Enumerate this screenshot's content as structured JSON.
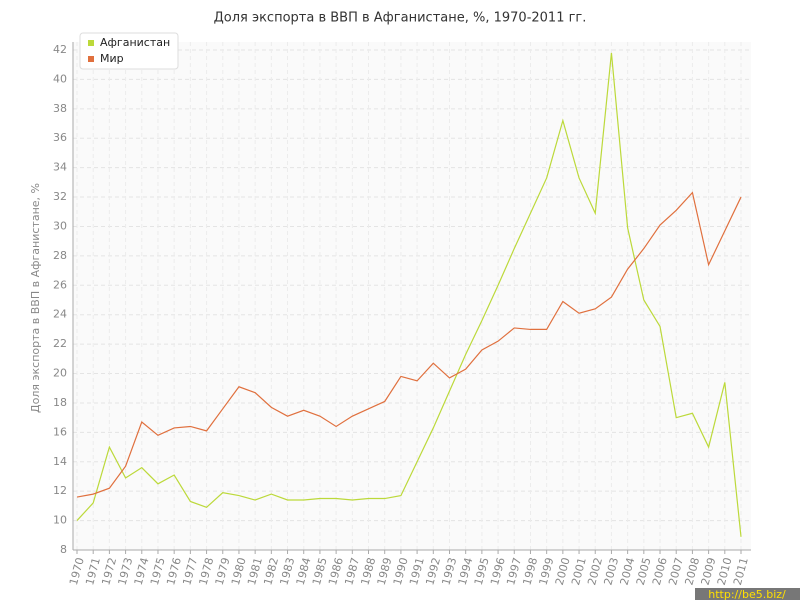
{
  "chart_data": {
    "type": "line",
    "title": "Доля экспорта в ВВП в Афганистане, %, 1970-2011 гг.",
    "y_label": "Доля экспорта в ВВП в Афганистане, %",
    "categories": [
      "1970",
      "1971",
      "1972",
      "1973",
      "1974",
      "1975",
      "1976",
      "1977",
      "1978",
      "1979",
      "1980",
      "1981",
      "1982",
      "1983",
      "1984",
      "1985",
      "1986",
      "1987",
      "1988",
      "1989",
      "1990",
      "1991",
      "1992",
      "1993",
      "1994",
      "1995",
      "1996",
      "1997",
      "1998",
      "1999",
      "2000",
      "2001",
      "2002",
      "2003",
      "2004",
      "2005",
      "2006",
      "2007",
      "2008",
      "2009",
      "2010",
      "2011"
    ],
    "series": [
      {
        "name": "Афганистан",
        "color": "#bcd93a",
        "values": [
          10.0,
          11.2,
          15.0,
          12.9,
          13.6,
          12.5,
          13.1,
          11.3,
          10.9,
          11.9,
          11.7,
          11.4,
          11.8,
          11.4,
          11.4,
          11.5,
          11.5,
          11.4,
          11.5,
          11.5,
          11.7,
          14.0,
          16.3,
          18.8,
          21.3,
          23.6,
          26.0,
          28.5,
          30.9,
          33.3,
          37.2,
          33.3,
          30.9,
          41.8,
          29.9,
          25.0,
          23.2,
          17.0,
          17.3,
          15.0,
          19.4,
          8.9
        ]
      },
      {
        "name": "Мир",
        "color": "#e0703e",
        "values": [
          11.6,
          11.8,
          12.2,
          13.7,
          16.7,
          15.8,
          16.3,
          16.4,
          16.1,
          17.6,
          19.1,
          18.7,
          17.7,
          17.1,
          17.5,
          17.1,
          16.4,
          17.1,
          17.6,
          18.1,
          19.8,
          19.5,
          20.7,
          19.7,
          20.3,
          21.6,
          22.2,
          23.1,
          23.0,
          23.0,
          24.9,
          24.1,
          24.4,
          25.2,
          27.1,
          28.5,
          30.1,
          31.1,
          32.3,
          27.4,
          29.7,
          32.0
        ]
      }
    ],
    "ylim": [
      8,
      42
    ],
    "yticks": [
      8,
      10,
      12,
      14,
      16,
      18,
      20,
      22,
      24,
      26,
      28,
      30,
      32,
      34,
      36,
      38,
      40,
      42
    ],
    "grid": true,
    "legend": "top-left",
    "watermark": "http://be5.biz/"
  }
}
